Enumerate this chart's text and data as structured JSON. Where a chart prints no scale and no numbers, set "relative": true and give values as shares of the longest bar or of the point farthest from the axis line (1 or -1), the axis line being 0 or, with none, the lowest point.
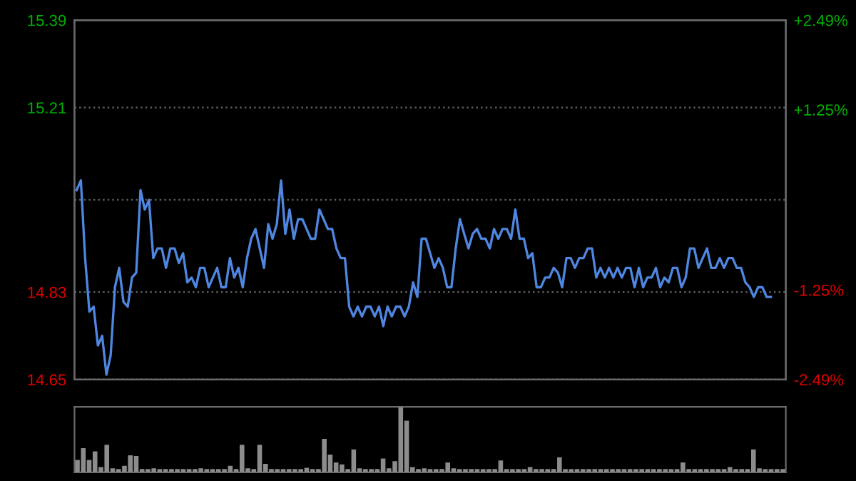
{
  "chart_data": [
    {
      "type": "line",
      "categories": [
        null,
        null,
        null,
        null,
        null,
        null,
        null,
        null,
        null,
        null,
        null,
        null,
        null,
        null,
        null,
        null,
        null,
        null,
        null,
        null,
        null,
        null,
        null,
        null,
        null,
        null,
        null,
        null,
        null,
        null,
        null,
        null,
        null,
        null,
        null,
        null,
        null,
        null,
        null,
        null,
        null,
        null,
        null,
        null,
        null,
        null,
        null,
        null,
        null,
        null,
        null,
        null,
        null,
        null,
        null,
        null,
        null,
        null,
        null,
        null,
        null,
        null,
        null,
        null,
        null,
        null,
        null,
        null,
        null,
        null,
        null,
        null,
        null,
        null,
        null,
        null,
        null,
        null,
        null,
        null,
        null,
        null,
        null,
        null,
        null,
        null,
        null,
        null,
        null,
        null,
        null,
        null,
        null,
        null,
        null,
        null,
        null,
        null,
        null,
        null,
        null,
        null,
        null,
        null,
        null,
        null,
        null,
        null,
        null,
        null,
        null,
        null,
        null,
        null,
        null,
        null,
        null,
        null,
        null,
        null,
        null,
        null,
        null,
        null,
        null,
        null,
        null,
        null,
        null,
        null,
        null,
        null,
        null,
        null,
        null,
        null,
        null,
        null,
        null,
        null,
        null,
        null,
        null,
        null,
        null,
        null,
        null,
        null,
        null,
        null,
        null,
        null,
        null,
        null,
        null,
        null,
        null,
        null,
        null,
        null,
        null,
        null,
        null,
        null,
        null,
        null,
        null
      ],
      "series": [
        {
          "color": "#4f86e0",
          "values": [
            15.04,
            15.06,
            14.9,
            14.79,
            14.8,
            14.72,
            14.74,
            14.66,
            14.7,
            14.84,
            14.88,
            14.81,
            14.8,
            14.86,
            14.87,
            15.04,
            15.0,
            15.02,
            14.9,
            14.92,
            14.92,
            14.88,
            14.92,
            14.92,
            14.89,
            14.91,
            14.85,
            14.86,
            14.84,
            14.88,
            14.88,
            14.84,
            14.86,
            14.88,
            14.84,
            14.84,
            14.9,
            14.86,
            14.88,
            14.84,
            14.9,
            14.94,
            14.96,
            14.92,
            14.88,
            14.97,
            14.94,
            14.97,
            15.06,
            14.95,
            15.0,
            14.94,
            14.98,
            14.98,
            14.96,
            14.94,
            14.94,
            15.0,
            14.98,
            14.96,
            14.96,
            14.92,
            14.9,
            14.9,
            14.8,
            14.78,
            14.8,
            14.78,
            14.8,
            14.8,
            14.78,
            14.8,
            14.76,
            14.8,
            14.78,
            14.8,
            14.8,
            14.78,
            14.8,
            14.85,
            14.82,
            14.94,
            14.94,
            14.91,
            14.88,
            14.9,
            14.88,
            14.84,
            14.84,
            14.92,
            14.98,
            14.95,
            14.92,
            14.95,
            14.96,
            14.94,
            14.94,
            14.92,
            14.96,
            14.94,
            14.96,
            14.96,
            14.94,
            15.0,
            14.94,
            14.94,
            14.9,
            14.91,
            14.84,
            14.84,
            14.86,
            14.86,
            14.88,
            14.87,
            14.84,
            14.9,
            14.9,
            14.88,
            14.9,
            14.9,
            14.92,
            14.92,
            14.86,
            14.88,
            14.86,
            14.88,
            14.86,
            14.88,
            14.86,
            14.88,
            14.88,
            14.84,
            14.88,
            14.84,
            14.86,
            14.86,
            14.88,
            14.84,
            14.86,
            14.85,
            14.88,
            14.88,
            14.84,
            14.86,
            14.92,
            14.92,
            14.88,
            14.9,
            14.92,
            14.88,
            14.88,
            14.9,
            14.88,
            14.9,
            14.9,
            14.88,
            14.88,
            14.85,
            14.84,
            14.82,
            14.84,
            14.84,
            14.82,
            14.82,
            null,
            null,
            null
          ]
        }
      ],
      "ylim": [
        14.65,
        15.39
      ],
      "yticks": [
        14.65,
        14.83,
        15.21,
        15.39
      ],
      "y2lim": [
        -2.49,
        2.49
      ],
      "y2ticks": [
        {
          "value": -2.49,
          "label": "-2.49%"
        },
        {
          "value": -1.25,
          "label": "-1.25%"
        },
        {
          "value": 1.25,
          "label": "+1.25%"
        },
        {
          "value": 2.49,
          "label": "+2.49%"
        }
      ],
      "ref_lines": [
        {
          "axis": "y",
          "value": 15.02,
          "label": null,
          "line_style": "dotted"
        }
      ],
      "grid": "y",
      "legend": false
    },
    {
      "type": "bar",
      "relative": true,
      "categories": [
        null,
        null,
        null,
        null,
        null,
        null,
        null,
        null,
        null,
        null,
        null,
        null,
        null,
        null,
        null,
        null,
        null,
        null,
        null,
        null,
        null,
        null,
        null,
        null,
        null,
        null,
        null,
        null,
        null,
        null,
        null,
        null,
        null,
        null,
        null,
        null,
        null,
        null,
        null,
        null,
        null,
        null,
        null,
        null,
        null,
        null,
        null,
        null,
        null,
        null,
        null,
        null,
        null,
        null,
        null,
        null,
        null,
        null,
        null,
        null,
        null,
        null,
        null,
        null,
        null,
        null,
        null,
        null,
        null,
        null,
        null,
        null,
        null,
        null,
        null,
        null,
        null,
        null,
        null,
        null,
        null,
        null,
        null,
        null,
        null,
        null,
        null,
        null,
        null,
        null,
        null,
        null,
        null,
        null,
        null,
        null,
        null,
        null,
        null,
        null,
        null,
        null,
        null,
        null,
        null,
        null,
        null,
        null,
        null,
        null,
        null,
        null,
        null,
        null,
        null,
        null,
        null,
        null,
        null,
        null,
        null
      ],
      "series": [
        {
          "color": "#8c8c8c",
          "values": [
            0.19,
            0.37,
            0.19,
            0.32,
            0.08,
            0.42,
            0.06,
            0.05,
            0.1,
            0.26,
            0.25,
            0.05,
            0.05,
            0.06,
            0.05,
            0.05,
            0.05,
            0.05,
            0.05,
            0.05,
            0.05,
            0.06,
            0.05,
            0.05,
            0.05,
            0.05,
            0.1,
            0.05,
            0.42,
            0.06,
            0.05,
            0.42,
            0.13,
            0.05,
            0.05,
            0.05,
            0.05,
            0.05,
            0.05,
            0.07,
            0.05,
            0.05,
            0.51,
            0.27,
            0.15,
            0.12,
            0.05,
            0.35,
            0.06,
            0.05,
            0.05,
            0.05,
            0.21,
            0.06,
            0.17,
            1,
            0.79,
            0.08,
            0.05,
            0.06,
            0.05,
            0.05,
            0.05,
            0.15,
            0.06,
            0.05,
            0.05,
            0.05,
            0.05,
            0.05,
            0.05,
            0.05,
            0.18,
            0.05,
            0.05,
            0.05,
            0.05,
            0.08,
            0.05,
            0.05,
            0.05,
            0.05,
            0.23,
            0.05,
            0.05,
            0.05,
            0.05,
            0.05,
            0.05,
            0.05,
            0.05,
            0.05,
            0.05,
            0.05,
            0.05,
            0.05,
            0.05,
            0.05,
            0.05,
            0.05,
            0.05,
            0.05,
            0.05,
            0.15,
            0.05,
            0.05,
            0.05,
            0.05,
            0.05,
            0.05,
            0.05,
            0.08,
            0.05,
            0.05,
            0.05,
            0.35,
            0.06,
            0.05,
            0.05,
            0.05,
            0.05
          ]
        }
      ],
      "grid": false,
      "legend": false
    }
  ]
}
